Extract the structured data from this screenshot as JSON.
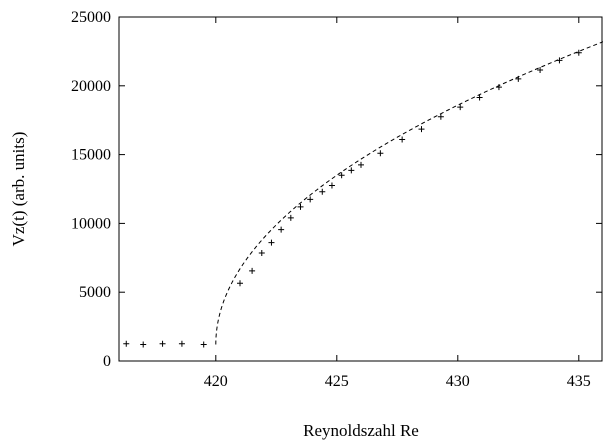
{
  "chart_data": {
    "type": "scatter",
    "xlabel": "Reynoldszahl Re",
    "ylabel": "Vz(t) (arb. units)",
    "xlim": [
      416,
      436
    ],
    "ylim": [
      0,
      25000
    ],
    "xticks": [
      420,
      425,
      430,
      435
    ],
    "yticks": [
      0,
      5000,
      10000,
      15000,
      20000,
      25000
    ],
    "grid": false,
    "series": [
      {
        "marker": "+",
        "x": [
          416.3,
          417.0,
          417.8,
          418.6,
          419.5,
          421.0,
          421.5,
          421.9,
          422.3,
          422.7,
          423.1,
          423.5,
          423.9,
          424.4,
          424.8,
          425.2,
          425.6,
          426.0,
          426.8,
          427.7,
          428.5,
          429.3,
          430.1,
          430.9,
          431.7,
          432.5,
          433.4,
          434.2,
          435.0
        ],
        "y": [
          1250,
          1200,
          1250,
          1250,
          1200,
          5650,
          6550,
          7850,
          8600,
          9550,
          10400,
          11200,
          11750,
          12300,
          12750,
          13500,
          13850,
          14250,
          15100,
          16100,
          16850,
          17750,
          18450,
          19150,
          19900,
          20500,
          21150,
          21850,
          22400
        ]
      },
      {
        "line": "dashed",
        "fit": {
          "x0": 420.0,
          "y0": 1200,
          "amplitude": 5500,
          "exponent": 0.5
        },
        "x_range": [
          420.0,
          436.0
        ]
      }
    ]
  }
}
